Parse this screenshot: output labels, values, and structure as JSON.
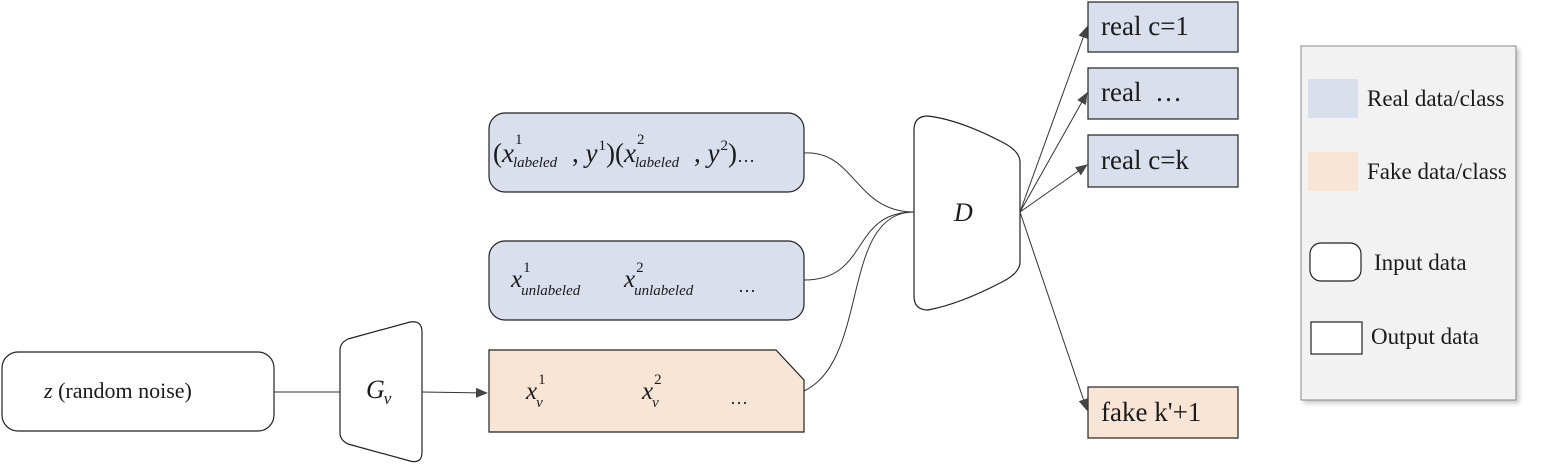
{
  "noise_box": {
    "var": "z",
    "text": "(random noise)"
  },
  "generator": {
    "main": "G",
    "sub": "v"
  },
  "discriminator": {
    "label": "D"
  },
  "labeled_box": {
    "paren_open": "(",
    "x": "x",
    "sup1": "1",
    "sub_labeled": "labeled",
    "comma": ", ",
    "y": "y",
    "paren_close": ")",
    "sup2": "2",
    "ellipsis": "…"
  },
  "unlabeled_box": {
    "x": "x",
    "sup1": "1",
    "sup2": "2",
    "sub_unlabeled": "unlabeled",
    "ellipsis": "…"
  },
  "fake_box": {
    "x": "x",
    "sup1": "1",
    "sup2": "2",
    "sub": "v",
    "ellipsis": "…"
  },
  "outputs": {
    "real_1": "real c=1",
    "real_dots": "real  …",
    "real_k": "real c=k",
    "fake": "fake k'+1"
  },
  "legend": {
    "real": "Real data/class",
    "fake": "Fake data/class",
    "input": "Input data",
    "output": "Output data"
  },
  "colors": {
    "real_fill": "#d9dfec",
    "fake_fill": "#f9e5d6",
    "stroke": "#333333",
    "legend_bg": "#f2f2f2"
  }
}
